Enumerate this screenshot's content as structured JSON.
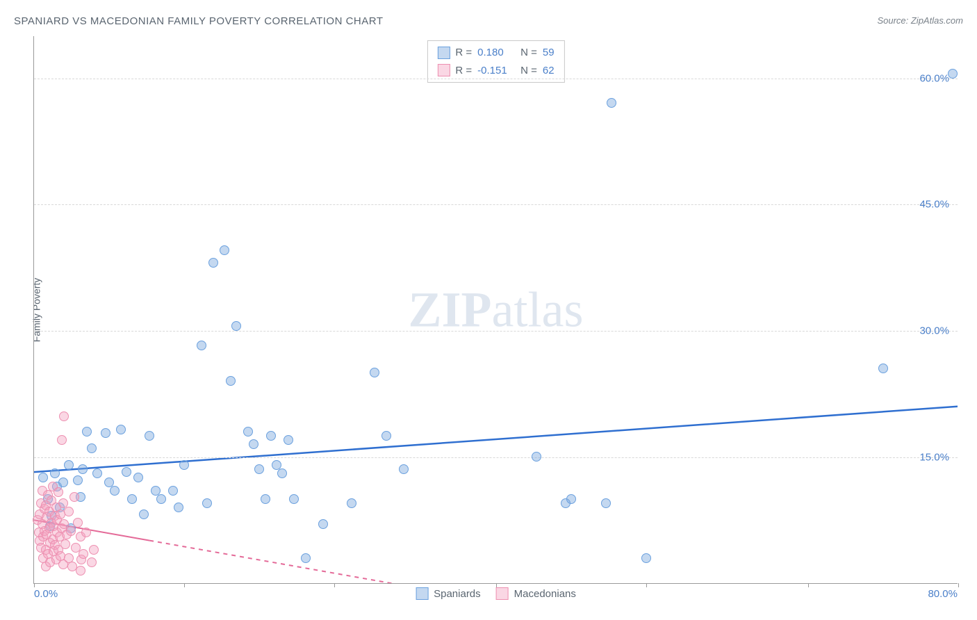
{
  "title": "SPANIARD VS MACEDONIAN FAMILY POVERTY CORRELATION CHART",
  "source_prefix": "Source: ",
  "source": "ZipAtlas.com",
  "ylabel": "Family Poverty",
  "watermark_bold": "ZIP",
  "watermark_light": "atlas",
  "chart": {
    "type": "scatter",
    "background_color": "#ffffff",
    "grid_color": "#d8d8d8",
    "axis_color": "#999999",
    "text_color": "#5a6570",
    "value_color": "#4a7fc9",
    "xlim": [
      0,
      80
    ],
    "ylim": [
      0,
      65
    ],
    "xtick_positions": [
      0,
      13,
      26,
      40,
      53,
      67,
      80
    ],
    "xtick_labels": {
      "0": "0.0%",
      "80": "80.0%"
    },
    "ytick_positions": [
      15,
      30,
      45,
      60
    ],
    "ytick_labels": [
      "15.0%",
      "30.0%",
      "45.0%",
      "60.0%"
    ],
    "point_radius": 7,
    "label_fontsize": 14,
    "tick_fontsize": 15,
    "title_fontsize": 15
  },
  "series": [
    {
      "name": "Spaniards",
      "color_fill": "rgba(124,169,222,0.45)",
      "color_stroke": "#6aa0de",
      "trend_color": "#2f6fd0",
      "trend_width": 2.5,
      "trend_dash": "none",
      "R": "0.180",
      "N": "59",
      "trend": {
        "x1": 0,
        "y1": 13.2,
        "x2": 80,
        "y2": 21.0
      },
      "points": [
        [
          0.8,
          12.5
        ],
        [
          1.2,
          10.0
        ],
        [
          1.5,
          8.0
        ],
        [
          1.4,
          6.8
        ],
        [
          1.8,
          13.0
        ],
        [
          2.0,
          11.5
        ],
        [
          2.2,
          9.0
        ],
        [
          2.5,
          12.0
        ],
        [
          3.0,
          14.0
        ],
        [
          3.2,
          6.5
        ],
        [
          3.8,
          12.2
        ],
        [
          4.0,
          10.2
        ],
        [
          4.2,
          13.5
        ],
        [
          4.6,
          18.0
        ],
        [
          5.0,
          16.0
        ],
        [
          5.5,
          13.0
        ],
        [
          6.2,
          17.8
        ],
        [
          6.5,
          12.0
        ],
        [
          7.0,
          11.0
        ],
        [
          7.5,
          18.2
        ],
        [
          8.0,
          13.2
        ],
        [
          8.5,
          10.0
        ],
        [
          9.0,
          12.5
        ],
        [
          9.5,
          8.2
        ],
        [
          10.0,
          17.5
        ],
        [
          10.5,
          11.0
        ],
        [
          11.0,
          10.0
        ],
        [
          12.0,
          11.0
        ],
        [
          12.5,
          9.0
        ],
        [
          13.0,
          14.0
        ],
        [
          14.5,
          28.2
        ],
        [
          15.0,
          9.5
        ],
        [
          15.5,
          38.0
        ],
        [
          16.5,
          39.5
        ],
        [
          17.0,
          24.0
        ],
        [
          17.5,
          30.5
        ],
        [
          18.5,
          18.0
        ],
        [
          19.0,
          16.5
        ],
        [
          19.5,
          13.5
        ],
        [
          20.0,
          10.0
        ],
        [
          20.5,
          17.5
        ],
        [
          21.0,
          14.0
        ],
        [
          21.5,
          13.0
        ],
        [
          22.5,
          10.0
        ],
        [
          22.0,
          17.0
        ],
        [
          23.5,
          3.0
        ],
        [
          25.0,
          7.0
        ],
        [
          27.5,
          9.5
        ],
        [
          29.5,
          25.0
        ],
        [
          30.5,
          17.5
        ],
        [
          32.0,
          13.5
        ],
        [
          43.5,
          15.0
        ],
        [
          46.0,
          9.5
        ],
        [
          46.5,
          10.0
        ],
        [
          49.5,
          9.5
        ],
        [
          50.0,
          57.0
        ],
        [
          53.0,
          3.0
        ],
        [
          73.5,
          25.5
        ],
        [
          79.5,
          60.5
        ]
      ]
    },
    {
      "name": "Macedonians",
      "color_fill": "rgba(244,160,190,0.42)",
      "color_stroke": "#ed8fb0",
      "trend_color": "#e46a98",
      "trend_width": 2,
      "trend_dash": "6,6",
      "R": "-0.151",
      "N": "62",
      "trend": {
        "x1": 0,
        "y1": 7.5,
        "x2": 35,
        "y2": -1.0
      },
      "trend_solid_until_x": 10,
      "points": [
        [
          0.3,
          7.5
        ],
        [
          0.4,
          6.0
        ],
        [
          0.5,
          8.2
        ],
        [
          0.5,
          5.0
        ],
        [
          0.6,
          9.5
        ],
        [
          0.6,
          4.2
        ],
        [
          0.7,
          7.0
        ],
        [
          0.7,
          11.0
        ],
        [
          0.8,
          5.5
        ],
        [
          0.8,
          3.0
        ],
        [
          0.9,
          8.8
        ],
        [
          0.9,
          6.2
        ],
        [
          1.0,
          4.0
        ],
        [
          1.0,
          9.2
        ],
        [
          1.0,
          2.0
        ],
        [
          1.1,
          7.8
        ],
        [
          1.1,
          5.8
        ],
        [
          1.2,
          10.5
        ],
        [
          1.2,
          3.5
        ],
        [
          1.3,
          6.5
        ],
        [
          1.3,
          8.5
        ],
        [
          1.4,
          4.8
        ],
        [
          1.4,
          2.5
        ],
        [
          1.5,
          7.2
        ],
        [
          1.5,
          9.8
        ],
        [
          1.6,
          5.2
        ],
        [
          1.6,
          11.5
        ],
        [
          1.7,
          3.8
        ],
        [
          1.7,
          6.8
        ],
        [
          1.8,
          8.0
        ],
        [
          1.8,
          4.5
        ],
        [
          1.9,
          2.8
        ],
        [
          1.9,
          9.0
        ],
        [
          2.0,
          6.0
        ],
        [
          2.0,
          7.5
        ],
        [
          2.1,
          10.8
        ],
        [
          2.1,
          4.0
        ],
        [
          2.2,
          5.5
        ],
        [
          2.3,
          8.2
        ],
        [
          2.3,
          3.2
        ],
        [
          2.4,
          6.5
        ],
        [
          2.5,
          9.5
        ],
        [
          2.5,
          2.2
        ],
        [
          2.6,
          7.0
        ],
        [
          2.7,
          4.6
        ],
        [
          2.8,
          5.8
        ],
        [
          3.0,
          3.0
        ],
        [
          3.0,
          8.5
        ],
        [
          3.2,
          6.2
        ],
        [
          3.3,
          2.0
        ],
        [
          3.5,
          10.2
        ],
        [
          3.6,
          4.2
        ],
        [
          3.8,
          7.2
        ],
        [
          4.0,
          5.5
        ],
        [
          4.0,
          1.5
        ],
        [
          4.1,
          2.8
        ],
        [
          4.3,
          3.5
        ],
        [
          4.5,
          6.0
        ],
        [
          2.6,
          19.8
        ],
        [
          2.4,
          17.0
        ],
        [
          5.0,
          2.5
        ],
        [
          5.2,
          4.0
        ]
      ]
    }
  ],
  "stats_labels": {
    "R": "R =",
    "N": "N ="
  },
  "legend_items": [
    {
      "label": "Spaniards",
      "fill": "rgba(124,169,222,0.45)",
      "stroke": "#6aa0de"
    },
    {
      "label": "Macedonians",
      "fill": "rgba(244,160,190,0.42)",
      "stroke": "#ed8fb0"
    }
  ]
}
